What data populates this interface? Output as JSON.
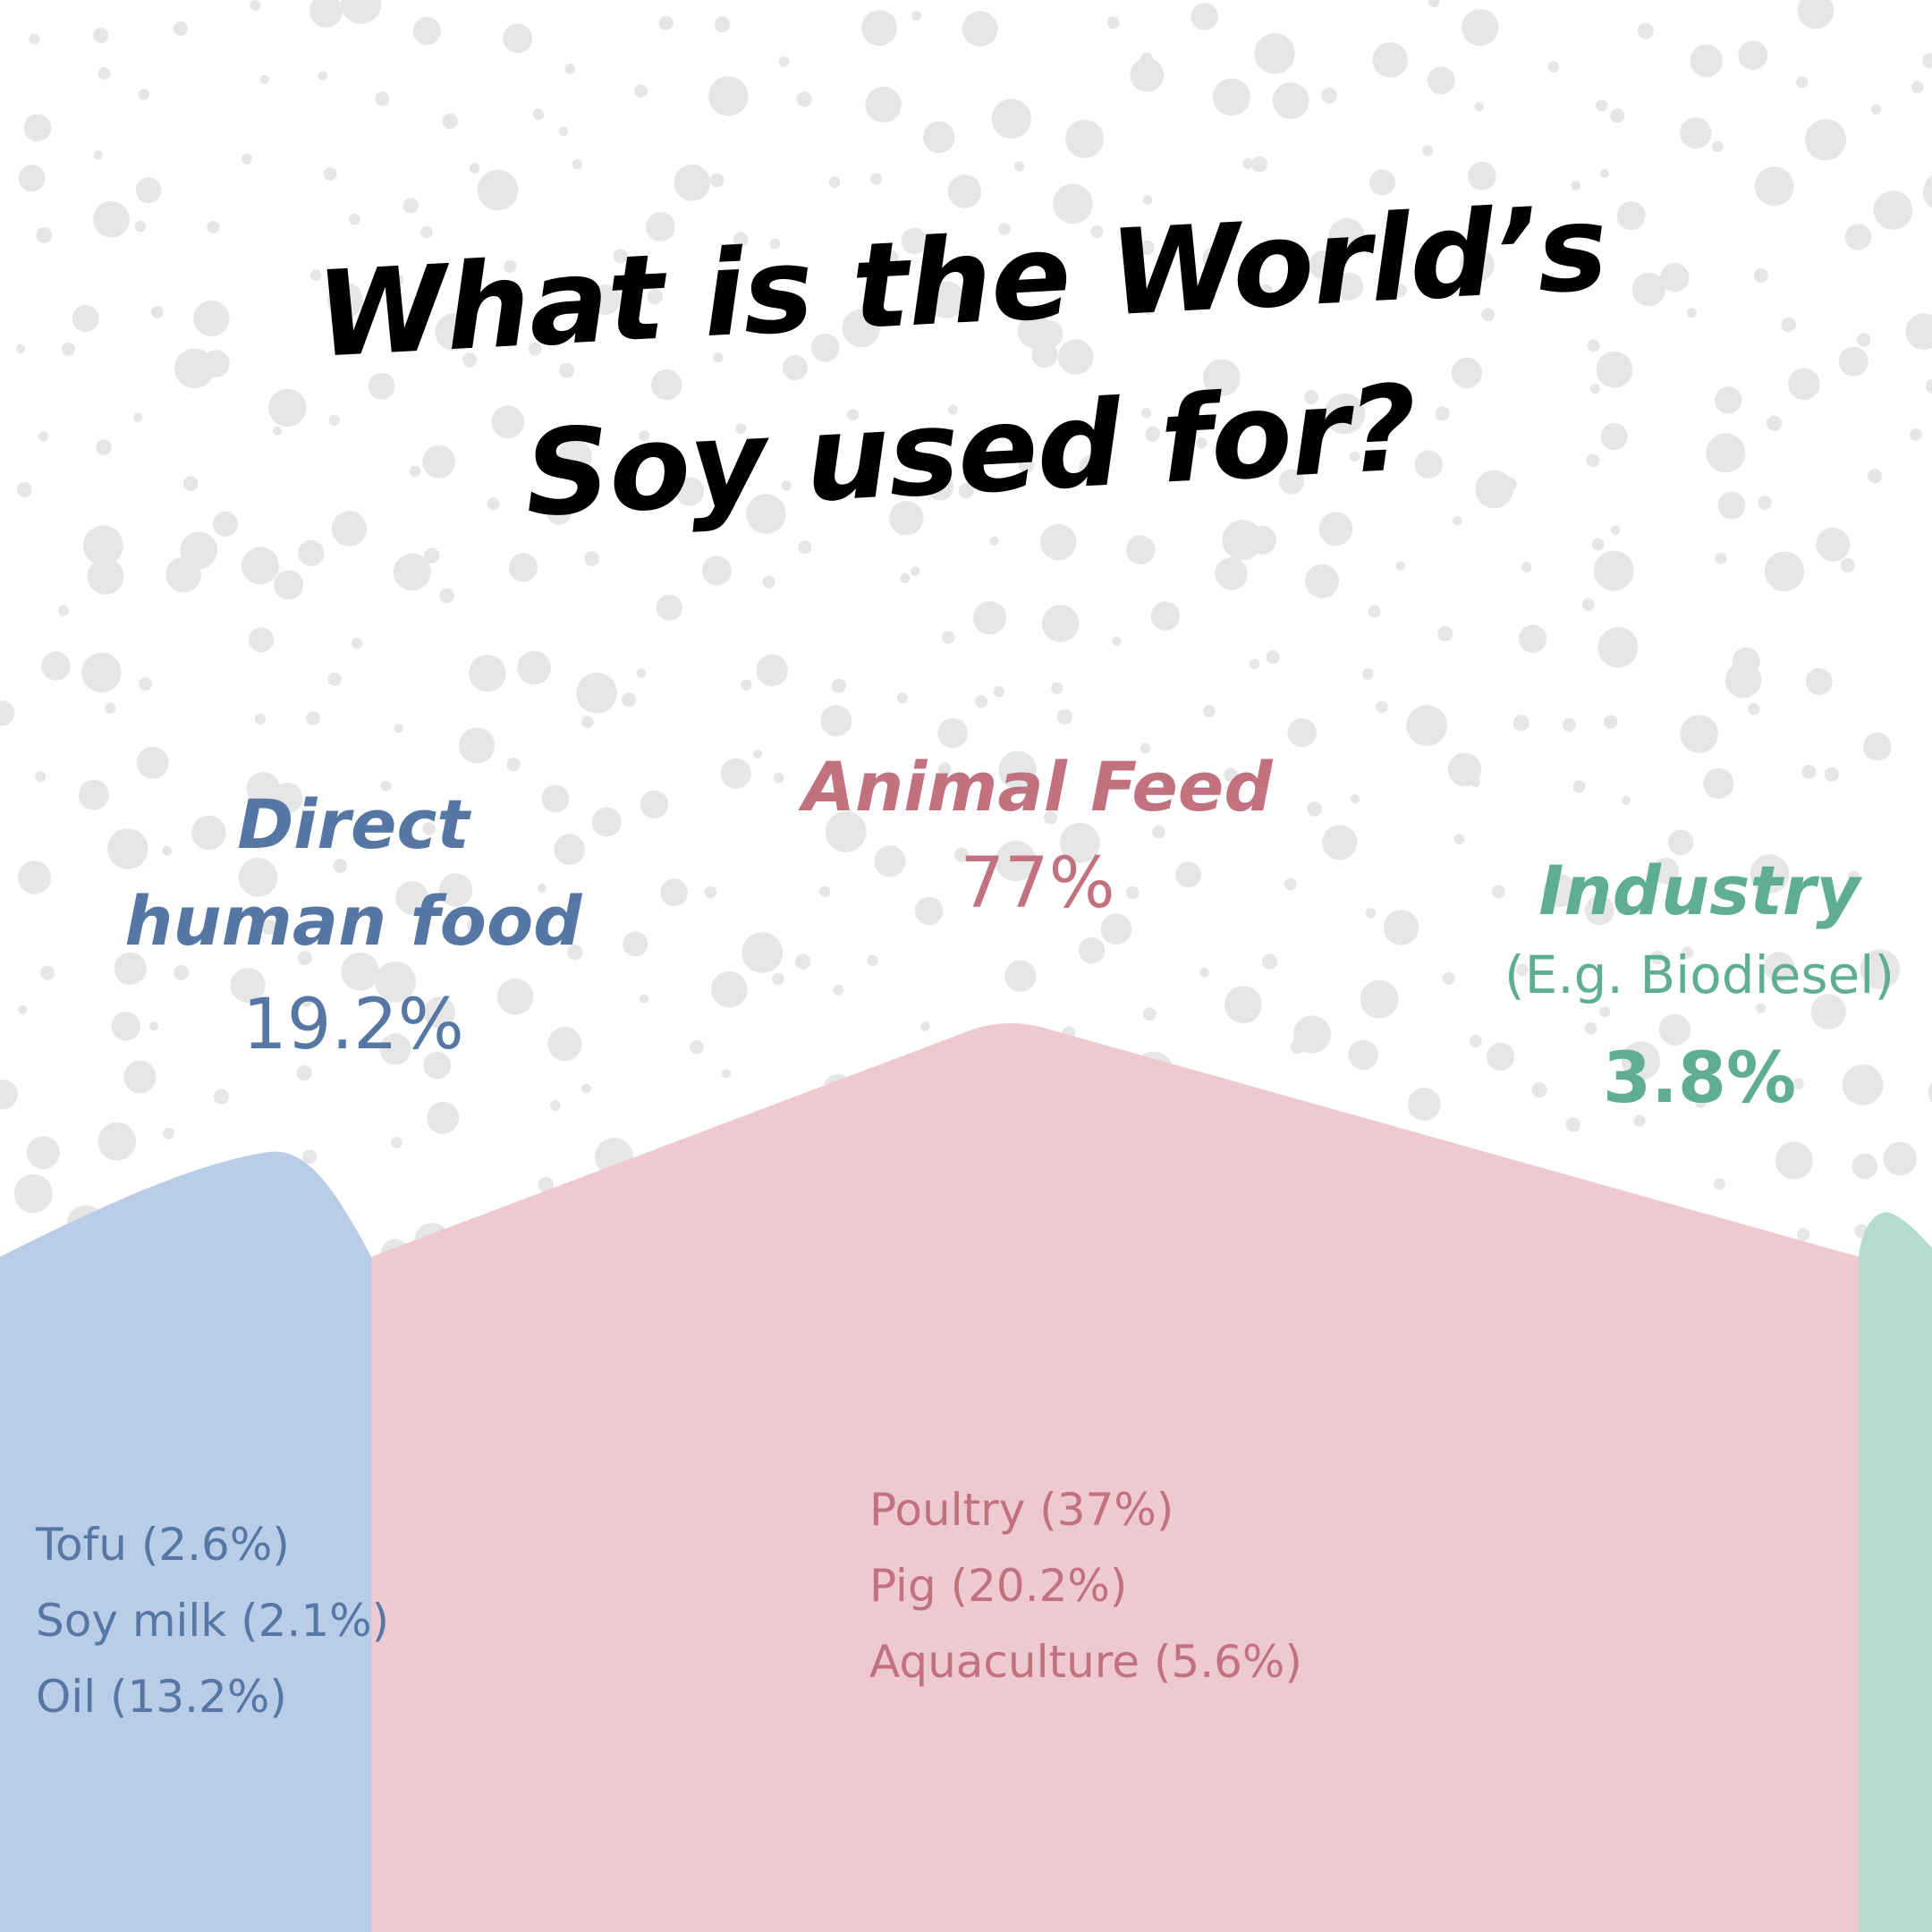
{
  "chart_data": {
    "type": "area",
    "title": "What is the World’s Soy used for?",
    "categories": [
      {
        "name": "Direct human food",
        "value": 19.2,
        "value_label": "19.2%",
        "color": "#bacde8",
        "text_color": "#5676a4",
        "breakdown": [
          {
            "label": "Tofu (2.6%)",
            "value": 2.6
          },
          {
            "label": "Soy milk (2.1%)",
            "value": 2.1
          },
          {
            "label": "Oil (13.2%)",
            "value": 13.2
          }
        ]
      },
      {
        "name": "Animal Feed",
        "value": 77,
        "value_label": "77%",
        "color": "#eecad0",
        "text_color": "#c2717f",
        "breakdown": [
          {
            "label": "Poultry (37%)",
            "value": 37
          },
          {
            "label": "Pig (20.2%)",
            "value": 20.2
          },
          {
            "label": "Aquaculture (5.6%)",
            "value": 5.6
          }
        ]
      },
      {
        "name": "Industry",
        "subtitle": "(E.g. Biodiesel)",
        "value": 3.8,
        "value_label": "3.8%",
        "color": "#b4ddd0",
        "text_color": "#5fae93",
        "breakdown": []
      }
    ],
    "background": "white with light grey dots"
  }
}
